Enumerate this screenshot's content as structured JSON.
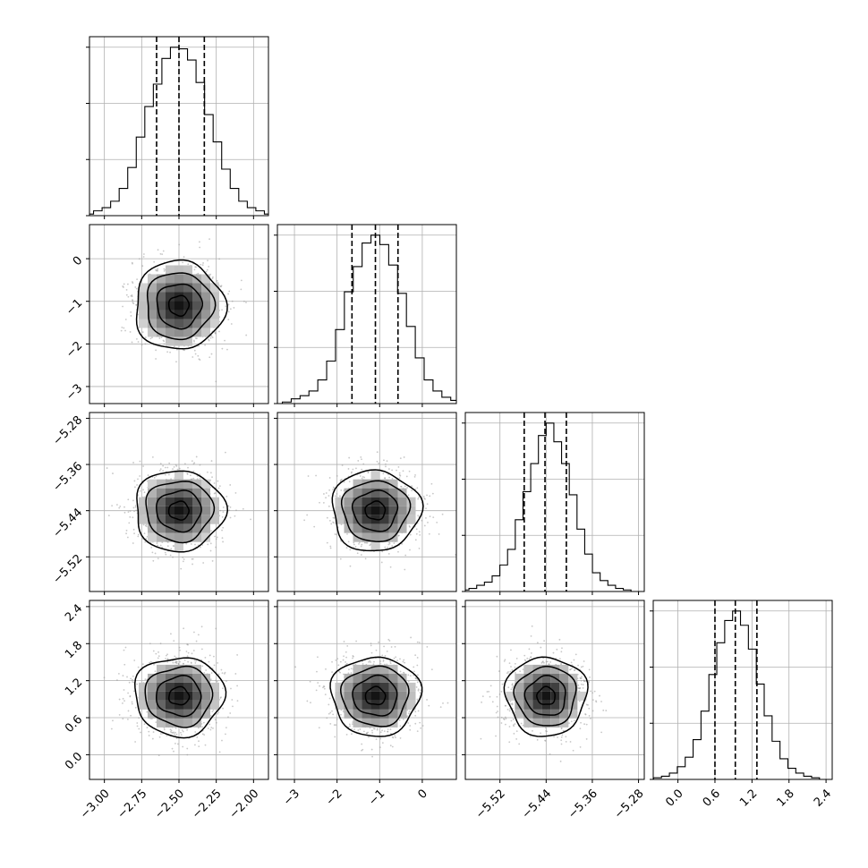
{
  "colors": {
    "axis": "#000000",
    "grid": "#b0b0b0",
    "scatter": "#9a9a9a",
    "contour": "#000000"
  },
  "chart_data": {
    "type": "corner",
    "grid": true,
    "params": [
      {
        "range": [
          -3.1,
          -1.9
        ],
        "ticks": [
          -3.0,
          -2.75,
          -2.5,
          -2.25,
          -2.0
        ],
        "tick_labels": [
          "−3.00",
          "−2.75",
          "−2.50",
          "−2.25",
          "−2.00"
        ],
        "mean": -2.5,
        "sd": 0.15,
        "quantiles": [
          -2.65,
          -2.5,
          -2.33
        ],
        "hist_counts": [
          1,
          3,
          5,
          9,
          17,
          30,
          49,
          68,
          82,
          98,
          105,
          104,
          97,
          83,
          63,
          46,
          29,
          17,
          9,
          5,
          3,
          1
        ]
      },
      {
        "range": [
          -3.4,
          0.8
        ],
        "ticks": [
          -3,
          -2,
          -1,
          0
        ],
        "tick_labels": [
          "−3",
          "−2",
          "−1",
          "0"
        ],
        "mean": -1.1,
        "sd": 0.52,
        "quantiles": [
          -1.65,
          -1.1,
          -0.57
        ],
        "hist_counts": [
          1,
          3,
          5,
          8,
          15,
          27,
          47,
          71,
          87,
          102,
          107,
          101,
          88,
          70,
          49,
          29,
          15,
          8,
          4,
          2,
          1
        ]
      },
      {
        "range": [
          -5.58,
          -5.27
        ],
        "ticks": [
          -5.52,
          -5.44,
          -5.36,
          -5.28
        ],
        "tick_labels": [
          "−5.52",
          "−5.44",
          "−5.36",
          "−5.28"
        ],
        "mean": -5.44,
        "sd": 0.035,
        "quantiles": [
          -5.478,
          -5.442,
          -5.405
        ],
        "hist_counts": [
          1,
          2,
          4,
          6,
          10,
          17,
          27,
          46,
          64,
          82,
          100,
          108,
          96,
          82,
          62,
          40,
          24,
          12,
          7,
          4,
          2,
          1
        ]
      },
      {
        "range": [
          -0.4,
          2.5
        ],
        "ticks": [
          0.0,
          0.6,
          1.2,
          1.8,
          2.4
        ],
        "tick_labels": [
          "0.0",
          "0.6",
          "1.2",
          "1.8",
          "2.4"
        ],
        "mean": 0.95,
        "sd": 0.32,
        "quantiles": [
          0.6,
          0.93,
          1.28
        ],
        "hist_counts": [
          1,
          2,
          4,
          8,
          14,
          25,
          43,
          66,
          86,
          100,
          106,
          97,
          82,
          60,
          40,
          24,
          13,
          7,
          4,
          2,
          1
        ]
      }
    ]
  }
}
